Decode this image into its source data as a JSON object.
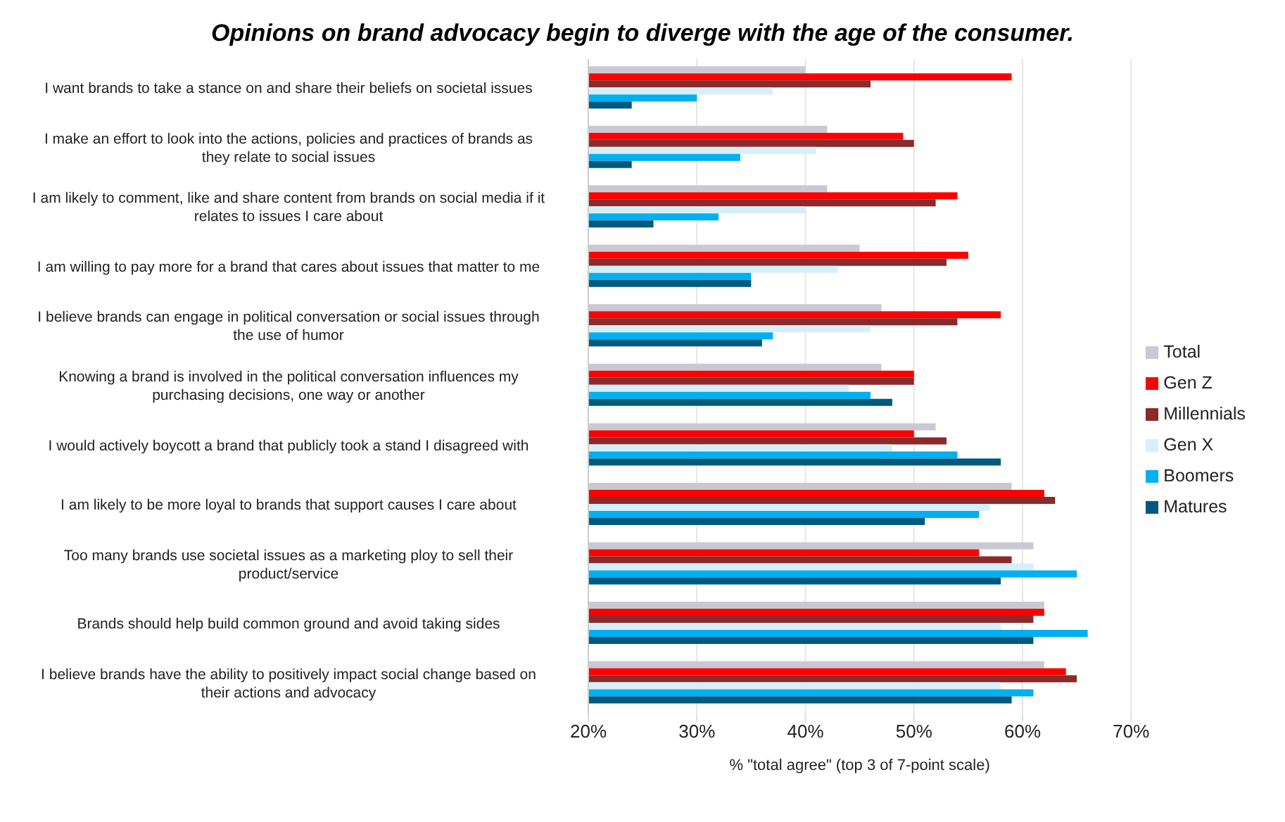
{
  "chart_data": {
    "type": "bar",
    "orientation": "horizontal",
    "title": "Opinions on brand advocacy begin to diverge with the age of the consumer.",
    "xlabel": "% \"total agree\" (top 3 of 7-point scale)",
    "categories": [
      "I want brands to take a stance on and share their beliefs on societal issues",
      "I make an effort to look into the actions, policies and practices of brands as they relate to social issues",
      "I am likely to comment, like and share content from brands on social media if it relates to issues I care about",
      "I am willing to pay more for a brand that cares about issues that matter to me",
      "I believe brands can engage in political conversation or social issues through the use of humor",
      "Knowing a brand is involved in the political conversation influences my purchasing decisions, one way or another",
      "I would actively boycott a brand that publicly took a stand I disagreed with",
      "I am likely to be more loyal to brands that support causes I care about",
      "Too many brands use societal issues as a marketing ploy to sell their product/service",
      "Brands should help build common ground and avoid taking sides",
      "I believe brands have the ability to positively impact social change based on their actions and advocacy"
    ],
    "series": [
      {
        "name": "Total",
        "color": "#c9c9d3",
        "values": [
          40,
          42,
          42,
          45,
          47,
          47,
          52,
          59,
          61,
          62,
          62
        ]
      },
      {
        "name": "Gen Z",
        "color": "#ff0000",
        "values": [
          59,
          49,
          54,
          55,
          58,
          50,
          50,
          62,
          56,
          62,
          64
        ]
      },
      {
        "name": "Millennials",
        "color": "#8b2a2a",
        "values": [
          46,
          50,
          52,
          53,
          54,
          50,
          53,
          63,
          59,
          61,
          65
        ]
      },
      {
        "name": "Gen X",
        "color": "#d6f0fb",
        "values": [
          37,
          41,
          40,
          43,
          46,
          44,
          48,
          57,
          61,
          58,
          58
        ]
      },
      {
        "name": "Boomers",
        "color": "#00b0f0",
        "values": [
          30,
          34,
          32,
          35,
          37,
          46,
          54,
          56,
          65,
          66,
          61
        ]
      },
      {
        "name": "Matures",
        "color": "#005a80",
        "values": [
          24,
          24,
          26,
          35,
          36,
          48,
          58,
          51,
          58,
          61,
          59
        ]
      }
    ],
    "xlim": [
      20,
      70
    ],
    "xticks": [
      {
        "value": 20,
        "label": "20%"
      },
      {
        "value": 30,
        "label": "30%"
      },
      {
        "value": 40,
        "label": "40%"
      },
      {
        "value": 50,
        "label": "50%"
      },
      {
        "value": 60,
        "label": "60%"
      },
      {
        "value": 70,
        "label": "70%"
      }
    ],
    "grid": "x",
    "legend": "right"
  }
}
